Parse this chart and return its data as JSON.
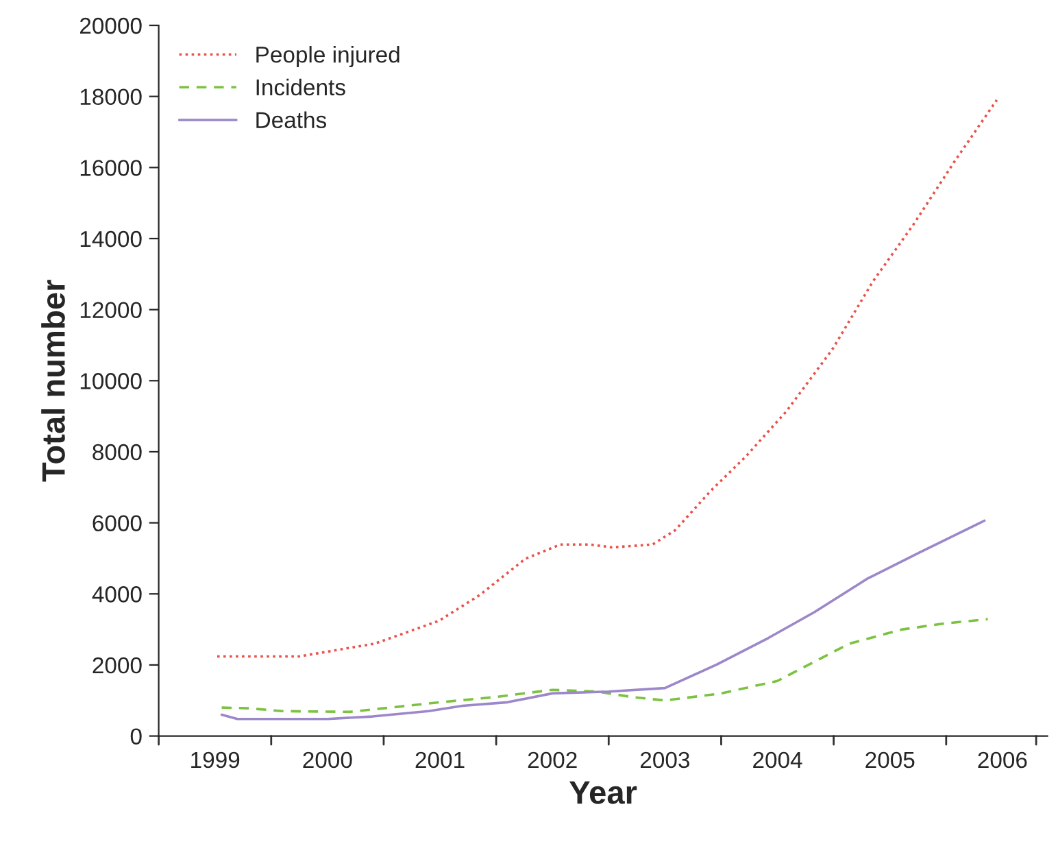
{
  "chart_data": {
    "type": "line",
    "xlabel": "Year",
    "ylabel": "Total number",
    "xlim": [
      1998.5,
      2006.4
    ],
    "ylim": [
      0,
      20000
    ],
    "xticks": [
      {
        "value": 1998.5,
        "label": null
      },
      1999,
      {
        "value": 1999.5,
        "label": null
      },
      2000,
      {
        "value": 2000.5,
        "label": null
      },
      2001,
      {
        "value": 2001.5,
        "label": null
      },
      2002,
      {
        "value": 2002.5,
        "label": null
      },
      2003,
      {
        "value": 2003.5,
        "label": null
      },
      2004,
      {
        "value": 2004.5,
        "label": null
      },
      2005,
      {
        "value": 2005.5,
        "label": null
      },
      2006,
      {
        "value": 2006.3,
        "label": null
      }
    ],
    "yticks": [
      0,
      2000,
      4000,
      6000,
      8000,
      10000,
      12000,
      14000,
      16000,
      18000,
      20000
    ],
    "grid": false,
    "legend": "top left",
    "series": [
      {
        "name": "People injured",
        "color": "#e8524a",
        "line_style": "dotted",
        "x": [
          1999.02,
          1999.75,
          2000.42,
          2000.99,
          2001.35,
          2001.76,
          2002.07,
          2002.33,
          2002.53,
          2002.89,
          2003.09,
          2003.41,
          2003.72,
          2004.08,
          2004.49,
          2004.85,
          2005.21,
          2005.57,
          2005.95
        ],
        "values": [
          2240,
          2240,
          2600,
          3240,
          3960,
          4990,
          5390,
          5390,
          5310,
          5390,
          5790,
          6910,
          7870,
          9140,
          10890,
          12800,
          14400,
          16150,
          17900
        ]
      },
      {
        "name": "Incidents",
        "color": "#7cc242",
        "line_style": "dashed",
        "x": [
          1999.06,
          1999.3,
          1999.6,
          2000.2,
          2000.5,
          2001.0,
          2001.5,
          2002.0,
          2002.4,
          2002.7,
          2003.0,
          2003.5,
          2004.0,
          2004.23,
          2004.64,
          2005.11,
          2005.47,
          2005.87
        ],
        "values": [
          800,
          780,
          700,
          680,
          780,
          950,
          1100,
          1300,
          1250,
          1100,
          1000,
          1200,
          1550,
          1930,
          2600,
          3000,
          3160,
          3290
        ]
      },
      {
        "name": "Deaths",
        "color": "#9b87c9",
        "line_style": "solid",
        "x": [
          1999.06,
          1999.2,
          2000.0,
          2000.4,
          2000.9,
          2001.2,
          2001.6,
          2002.0,
          2002.5,
          2003.0,
          2003.46,
          2003.92,
          2004.33,
          2004.8,
          2005.26,
          2005.84
        ],
        "values": [
          600,
          480,
          480,
          550,
          700,
          850,
          950,
          1200,
          1250,
          1350,
          2010,
          2760,
          3490,
          4430,
          5160,
          6060
        ]
      }
    ]
  }
}
